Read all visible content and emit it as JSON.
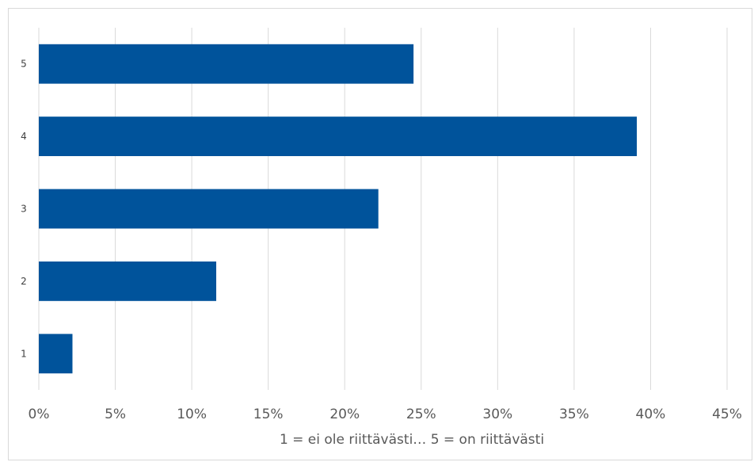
{
  "chart_data": {
    "type": "bar",
    "orientation": "horizontal",
    "categories": [
      "1",
      "2",
      "3",
      "4",
      "5"
    ],
    "values": [
      2.2,
      11.6,
      22.2,
      39.1,
      24.5
    ],
    "unit": "%",
    "xlim": [
      0,
      45
    ],
    "x_ticks": [
      "0%",
      "5%",
      "10%",
      "15%",
      "20%",
      "25%",
      "30%",
      "35%",
      "40%",
      "45%"
    ],
    "xlabel": "1 = ei ole riittävästi… 5 = on riittävästi",
    "ylabel": "",
    "title": "",
    "grid": "vertical",
    "legend": "none",
    "bar_color": "#00539b"
  }
}
